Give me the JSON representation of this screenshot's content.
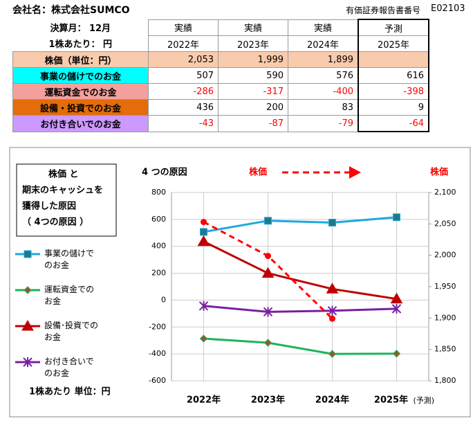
{
  "header": {
    "company": "会社名：株式会社SUMCO",
    "document_id_label": "有価証券報告書番号",
    "document_id": "E02103",
    "fiscal_month": "決算月： 12月",
    "unit": "1株あたり： 円"
  },
  "table": {
    "column_status": [
      "実績",
      "実績",
      "実績",
      "予測"
    ],
    "column_years": [
      "2022年",
      "2023年",
      "2024年",
      "2025年"
    ],
    "rows": [
      {
        "label": "株価（単位：円）",
        "color": "#f8cbad",
        "values": [
          "2,053",
          "1,999",
          "1,899",
          null
        ]
      },
      {
        "label": "事業の儲けでのお金",
        "color": "#00ffff",
        "values": [
          "507",
          "590",
          "576",
          "616"
        ]
      },
      {
        "label": "運転資金でのお金",
        "color": "#f4a09c",
        "text_color": "#ff0000",
        "values": [
          "-286",
          "-317",
          "-400",
          "-398"
        ]
      },
      {
        "label": "設備・投資でのお金",
        "color": "#e46c0a",
        "values": [
          "436",
          "200",
          "83",
          "9"
        ]
      },
      {
        "label": "お付き合いでのお金",
        "color": "#cc99ff",
        "text_color": "#ff0000",
        "values": [
          "-43",
          "-87",
          "-79",
          "-64"
        ]
      }
    ]
  },
  "chart_data": {
    "type": "line",
    "title_box": [
      "株価 と",
      "期末のキャッシュを",
      "獲得した原因",
      "（ 4つの原因 ）"
    ],
    "subtitle": "4 つの原因",
    "stock_annotation": "株価",
    "y2_label": "株価",
    "unit_note": "1株あたり  単位：円",
    "forecast_note": "(予測)",
    "categories": [
      "2022年",
      "2023年",
      "2024年",
      "2025年"
    ],
    "ylim": [
      -600,
      800
    ],
    "yticks": [
      -600,
      -400,
      -200,
      0,
      200,
      400,
      600,
      800
    ],
    "y2lim": [
      1800,
      2100
    ],
    "y2ticks": [
      {
        "value": 1800,
        "label": "1,800"
      },
      {
        "value": 1850,
        "label": "1,850"
      },
      {
        "value": 1900,
        "label": "1,900"
      },
      {
        "value": 1950,
        "label": "1,950"
      },
      {
        "value": 2000,
        "label": "2,000"
      },
      {
        "value": 2050,
        "label": "2,050"
      },
      {
        "value": 2100,
        "label": "2,100"
      }
    ],
    "grid": true,
    "series": [
      {
        "name": "事業の儲けでのお金",
        "color": "#1ca9e0",
        "marker": "square",
        "values": [
          507,
          590,
          576,
          616
        ]
      },
      {
        "name": "運転資金でのお金",
        "color": "#1db35a",
        "marker": "diamond",
        "values": [
          -286,
          -317,
          -400,
          -398
        ]
      },
      {
        "name": "設備･投資でのお金",
        "color": "#c00000",
        "marker": "triangle",
        "values": [
          436,
          200,
          83,
          9
        ]
      },
      {
        "name": "お付き合いでのお金",
        "color": "#7a1fa2",
        "marker": "star",
        "values": [
          -43,
          -87,
          -79,
          -64
        ]
      },
      {
        "name": "株価",
        "color": "#ff0000",
        "marker": "circle",
        "dashed": true,
        "axis": "y2",
        "values": [
          2053,
          1999,
          1899,
          null
        ]
      }
    ]
  }
}
